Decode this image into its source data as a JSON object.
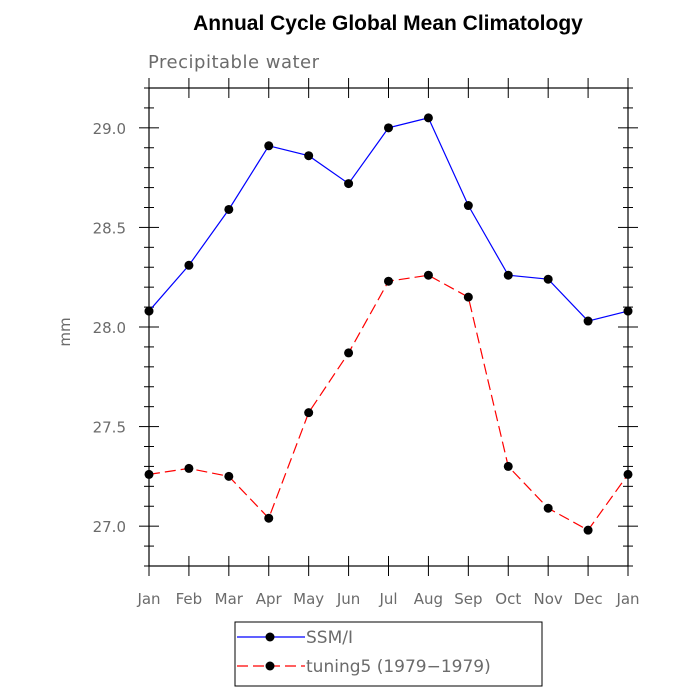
{
  "chart_data": {
    "type": "line",
    "title": "Annual Cycle Global Mean Climatology",
    "subtitle": "Precipitable water",
    "xlabel": "",
    "ylabel": "mm",
    "categories": [
      "Jan",
      "Feb",
      "Mar",
      "Apr",
      "May",
      "Jun",
      "Jul",
      "Aug",
      "Sep",
      "Oct",
      "Nov",
      "Dec",
      "Jan"
    ],
    "ylim": [
      26.8,
      29.2
    ],
    "yticks": [
      27.0,
      27.5,
      28.0,
      28.5,
      29.0
    ],
    "ytick_labels": [
      "27.0",
      "27.5",
      "28.0",
      "28.5",
      "29.0"
    ],
    "grid": false,
    "legend_position": "bottom",
    "series": [
      {
        "name": "SSM/I",
        "color": "#0000ff",
        "dash": "solid",
        "values": [
          28.08,
          28.31,
          28.59,
          28.91,
          28.86,
          28.72,
          29.0,
          29.05,
          28.61,
          28.26,
          28.24,
          28.03,
          28.08
        ]
      },
      {
        "name": "tuning5 (1979−1979)",
        "color": "#ff0000",
        "dash": "dashed",
        "values": [
          27.26,
          27.29,
          27.25,
          27.04,
          27.57,
          27.87,
          28.23,
          28.26,
          28.15,
          27.3,
          27.09,
          26.98,
          27.26
        ]
      }
    ]
  }
}
